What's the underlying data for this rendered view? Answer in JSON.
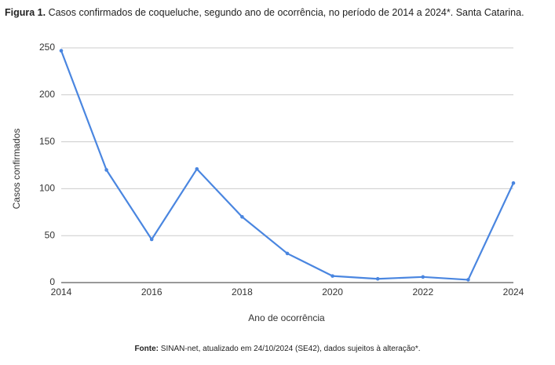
{
  "chart_data": {
    "type": "line",
    "figure_label": "Figura 1.",
    "title": "Casos confirmados de coqueluche, segundo ano de ocorrência, no período de 2014 a 2024*. Santa Catarina.",
    "x_label": "Ano de ocorrência",
    "y_label": "Casos confirmados",
    "x": [
      2014,
      2015,
      2016,
      2017,
      2018,
      2019,
      2020,
      2021,
      2022,
      2023,
      2024
    ],
    "values": [
      247,
      120,
      46,
      121,
      70,
      31,
      7,
      4,
      6,
      3,
      106
    ],
    "color": "#4a86e0",
    "xlim": [
      2014,
      2024
    ],
    "xticks": [
      2014,
      2016,
      2018,
      2020,
      2022,
      2024
    ],
    "ylim": [
      0,
      250
    ],
    "yticks": [
      0,
      50,
      100,
      150,
      200,
      250
    ],
    "grid": true,
    "source_label": "Fonte:",
    "source": "SINAN-net, atualizado em 24/10/2024 (SE42), dados sujeitos à alteração*."
  }
}
